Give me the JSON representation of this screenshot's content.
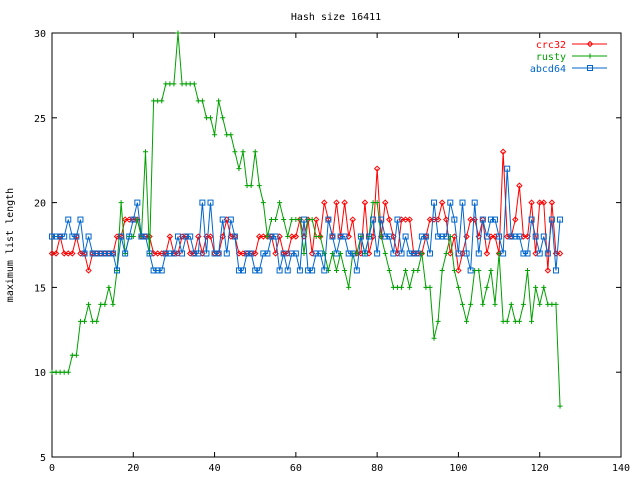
{
  "chart_data": {
    "type": "line",
    "title": "Hash size 16411",
    "xlabel": "",
    "ylabel": "maximum list length",
    "xlim": [
      0,
      140
    ],
    "ylim": [
      5,
      30
    ],
    "xticks": [
      0,
      20,
      40,
      60,
      80,
      100,
      120,
      140
    ],
    "yticks": [
      5,
      10,
      15,
      20,
      25,
      30
    ],
    "grid": false,
    "legend_position": "top-right",
    "series": [
      {
        "name": "crc32",
        "color": "#ff0000",
        "marker": "diamond",
        "values": [
          17,
          17,
          18,
          17,
          17,
          17,
          18,
          17,
          17,
          16,
          17,
          17,
          17,
          17,
          17,
          17,
          18,
          18,
          19,
          19,
          19,
          19,
          18,
          18,
          18,
          17,
          17,
          17,
          17,
          18,
          17,
          17,
          18,
          18,
          17,
          17,
          18,
          17,
          18,
          18,
          17,
          17,
          18,
          19,
          18,
          18,
          17,
          17,
          17,
          17,
          17,
          18,
          18,
          18,
          18,
          17,
          18,
          17,
          17,
          18,
          18,
          19,
          18,
          19,
          17,
          19,
          18,
          20,
          19,
          18,
          20,
          18,
          20,
          18,
          19,
          17,
          17,
          20,
          17,
          18,
          22,
          18,
          20,
          19,
          18,
          17,
          19,
          19,
          19,
          17,
          17,
          17,
          18,
          19,
          19,
          19,
          20,
          19,
          17,
          18,
          16,
          17,
          18,
          19,
          19,
          18,
          19,
          17,
          18,
          18,
          17,
          23,
          18,
          18,
          19,
          21,
          18,
          18,
          20,
          17,
          20,
          20,
          16,
          20,
          17,
          17
        ]
      },
      {
        "name": "rusty",
        "color": "#00a000",
        "marker": "plus",
        "values": [
          10,
          10,
          10,
          10,
          10,
          11,
          11,
          13,
          13,
          14,
          13,
          13,
          14,
          14,
          15,
          14,
          16,
          20,
          17,
          18,
          18,
          19,
          18,
          23,
          17,
          26,
          26,
          26,
          27,
          27,
          27,
          30,
          27,
          27,
          27,
          27,
          26,
          26,
          25,
          25,
          24,
          26,
          25,
          24,
          24,
          23,
          22,
          23,
          21,
          21,
          23,
          21,
          20,
          18,
          19,
          19,
          20,
          19,
          18,
          19,
          19,
          19,
          17,
          19,
          19,
          18,
          18,
          17,
          16,
          17,
          16,
          17,
          16,
          15,
          17,
          17,
          18,
          17,
          18,
          20,
          20,
          18,
          17,
          16,
          15,
          15,
          15,
          16,
          15,
          16,
          16,
          17,
          15,
          15,
          12,
          13,
          16,
          17,
          18,
          16,
          15,
          14,
          13,
          14,
          16,
          16,
          14,
          15,
          16,
          14,
          17,
          13,
          13,
          14,
          13,
          13,
          14,
          16,
          13,
          15,
          14,
          15,
          14,
          14,
          14,
          8
        ]
      },
      {
        "name": "abcd64",
        "color": "#0066cc",
        "marker": "square",
        "values": [
          18,
          18,
          18,
          18,
          19,
          18,
          18,
          19,
          17,
          18,
          17,
          17,
          17,
          17,
          17,
          17,
          16,
          18,
          17,
          18,
          19,
          20,
          18,
          18,
          17,
          16,
          16,
          16,
          17,
          17,
          17,
          18,
          17,
          18,
          18,
          17,
          17,
          20,
          17,
          20,
          17,
          17,
          19,
          17,
          19,
          18,
          16,
          16,
          17,
          17,
          16,
          16,
          17,
          17,
          18,
          18,
          16,
          17,
          16,
          17,
          17,
          16,
          19,
          16,
          16,
          17,
          17,
          16,
          19,
          18,
          17,
          18,
          18,
          17,
          17,
          16,
          18,
          17,
          18,
          19,
          17,
          19,
          18,
          18,
          17,
          19,
          17,
          18,
          17,
          17,
          17,
          18,
          18,
          17,
          20,
          18,
          18,
          18,
          20,
          19,
          17,
          20,
          17,
          16,
          20,
          17,
          19,
          18,
          19,
          19,
          18,
          17,
          22,
          18,
          18,
          18,
          17,
          17,
          19,
          18,
          17,
          18,
          17,
          19,
          16,
          19
        ]
      }
    ]
  }
}
